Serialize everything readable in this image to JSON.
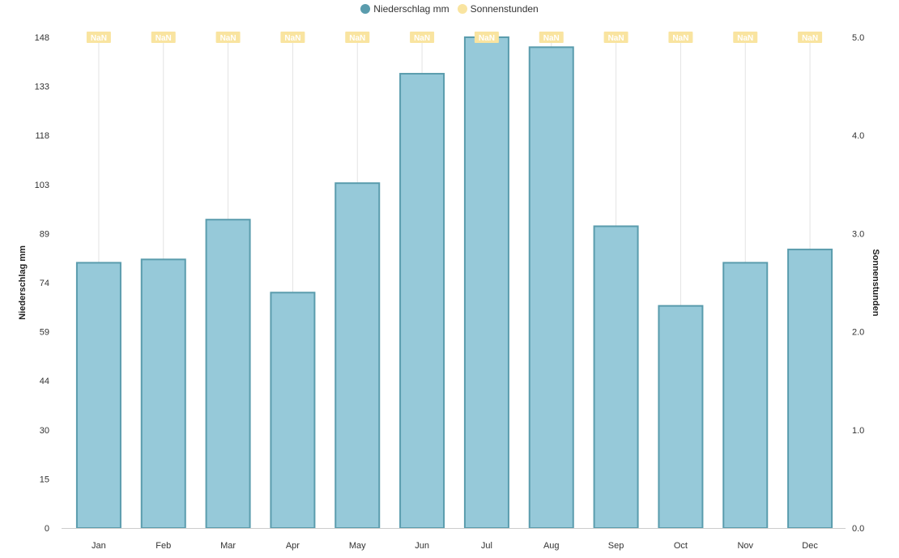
{
  "legend": {
    "items": [
      {
        "label": "Niederschlag mm",
        "color": "#5a9cad"
      },
      {
        "label": "Sonnenstunden",
        "color": "#f9e4a0"
      }
    ]
  },
  "chart_data": {
    "type": "bar",
    "categories": [
      "Jan",
      "Feb",
      "Mar",
      "Apr",
      "May",
      "Jun",
      "Jul",
      "Aug",
      "Sep",
      "Oct",
      "Nov",
      "Dec"
    ],
    "series": [
      {
        "name": "Niederschlag mm",
        "type": "bar",
        "axis": "left",
        "values": [
          80,
          81,
          93,
          71,
          104,
          137,
          148,
          145,
          91,
          67,
          80,
          84
        ],
        "fill": "#96c9d9",
        "stroke": "#5a9cad"
      },
      {
        "name": "Sonnenstunden",
        "type": "line",
        "axis": "right",
        "values": [
          null,
          null,
          null,
          null,
          null,
          null,
          null,
          null,
          null,
          null,
          null,
          null
        ],
        "data_labels": [
          "NaN",
          "NaN",
          "NaN",
          "NaN",
          "NaN",
          "NaN",
          "NaN",
          "NaN",
          "NaN",
          "NaN",
          "NaN",
          "NaN"
        ],
        "color": "#f9e4a0"
      }
    ],
    "y_left": {
      "label": "Niederschlag mm",
      "ticks": [
        "0",
        "15",
        "30",
        "44",
        "59",
        "74",
        "89",
        "103",
        "118",
        "133",
        "148"
      ],
      "range": [
        0,
        148
      ]
    },
    "y_right": {
      "label": "Sonnenstunden",
      "ticks": [
        "0.0",
        "1.0",
        "2.0",
        "3.0",
        "4.0",
        "5.0"
      ],
      "range": [
        0,
        5
      ]
    },
    "legend_position": "top-center",
    "grid": "vertical"
  }
}
